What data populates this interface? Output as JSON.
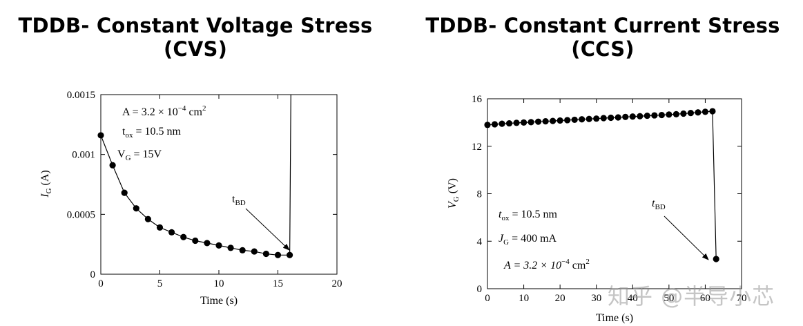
{
  "titles": {
    "left_line1": "TDDB- Constant Voltage Stress",
    "left_line2": "(CVS)",
    "right_line1": "TDDB- Constant Current Stress",
    "right_line2": "(CCS)"
  },
  "watermark": "知乎 @半导小芯",
  "chart_data": [
    {
      "type": "line",
      "xlabel": "Time (s)",
      "ylabel_main": "I",
      "ylabel_sub": "G",
      "ylabel_unit": " (A)",
      "xlim": [
        0,
        20
      ],
      "ylim": [
        0,
        0.0015
      ],
      "xticks": [
        0,
        5,
        10,
        15,
        20
      ],
      "yticks": [
        0,
        0.0005,
        0.001,
        0.0015
      ],
      "ytick_labels": [
        "0",
        "0.0005",
        "0.001",
        "0.0015"
      ],
      "grid": false,
      "annotations": {
        "area": "A = 3.2 × 10⁻⁴ cm²",
        "area_base": "A = 3.2 × 10",
        "area_exp": "−4",
        "area_unit": " cm",
        "area_unit_exp": "2",
        "tox_main": "t",
        "tox_sub": "ox",
        "tox_val": " = 10.5 nm",
        "vg_main": "V",
        "vg_sub": "G",
        "vg_val": " =   15V",
        "tbd_main": "t",
        "tbd_sub": "BD"
      },
      "series": [
        {
          "x": [
            0,
            1,
            2,
            3,
            4,
            5,
            6,
            7,
            8,
            9,
            10,
            11,
            12,
            13,
            14,
            15,
            16
          ],
          "y": [
            0.00116,
            0.00091,
            0.00068,
            0.00055,
            0.00046,
            0.00039,
            0.00035,
            0.00031,
            0.00028,
            0.00026,
            0.00024,
            0.00022,
            0.0002,
            0.00019,
            0.00017,
            0.00016,
            0.00016
          ]
        }
      ],
      "breakdown": {
        "x": 16.1,
        "y_top": 0.0015,
        "y_bottom": 0.00016
      }
    },
    {
      "type": "line",
      "xlabel": "Time (s)",
      "ylabel_main": "V",
      "ylabel_sub": "G",
      "ylabel_unit": " (V)",
      "xlim": [
        0,
        70
      ],
      "ylim": [
        0,
        16
      ],
      "xticks": [
        0,
        10,
        20,
        30,
        40,
        50,
        60,
        70
      ],
      "yticks": [
        0,
        4,
        8,
        12,
        16
      ],
      "ytick_labels": [
        "0",
        "4",
        "8",
        "12",
        "16"
      ],
      "grid": false,
      "annotations": {
        "tox_main": "t",
        "tox_sub": "ox",
        "tox_val": " = 10.5 nm",
        "jg_main": "J",
        "jg_sub": "G",
        "jg_val": " =   400 mA",
        "area_base": "A = 3.2 × 10",
        "area_exp": "−4",
        "area_unit": " cm",
        "area_unit_exp": "2",
        "tbd_main": "t",
        "tbd_sub": "BD"
      },
      "series": [
        {
          "x": [
            0,
            2,
            4,
            6,
            8,
            10,
            12,
            14,
            16,
            18,
            20,
            22,
            24,
            26,
            28,
            30,
            32,
            34,
            36,
            38,
            40,
            42,
            44,
            46,
            48,
            50,
            52,
            54,
            56,
            58,
            60,
            62
          ],
          "y": [
            13.8,
            13.85,
            13.9,
            13.93,
            13.97,
            14.0,
            14.03,
            14.07,
            14.1,
            14.13,
            14.17,
            14.2,
            14.23,
            14.27,
            14.3,
            14.33,
            14.37,
            14.4,
            14.43,
            14.47,
            14.5,
            14.53,
            14.57,
            14.6,
            14.63,
            14.67,
            14.7,
            14.75,
            14.8,
            14.85,
            14.9,
            14.95
          ]
        }
      ],
      "breakdown_point": {
        "x": 63,
        "y": 2.5
      }
    }
  ]
}
